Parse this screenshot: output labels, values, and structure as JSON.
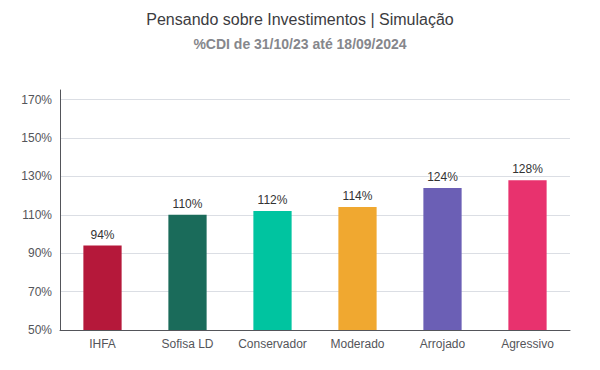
{
  "chart_data": {
    "type": "bar",
    "title": "Pensando sobre Investimentos | Simulação",
    "subtitle": "%CDI de 31/10/23 até 18/09/2024",
    "categories": [
      "IHFA",
      "Sofisa LD",
      "Conservador",
      "Moderado",
      "Arrojado",
      "Agressivo"
    ],
    "values": [
      94,
      110,
      112,
      114,
      124,
      128
    ],
    "value_labels": [
      "94%",
      "110%",
      "112%",
      "114%",
      "124%",
      "128%"
    ],
    "colors": [
      "#b5183a",
      "#1a6b5a",
      "#00c4a0",
      "#f0a830",
      "#6b5fb5",
      "#e8326e"
    ],
    "ylim": [
      50,
      175
    ],
    "yticks": [
      {
        "value": 50,
        "label": "50%"
      },
      {
        "value": 70,
        "label": "70%"
      },
      {
        "value": 90,
        "label": "90%"
      },
      {
        "value": 110,
        "label": "110%"
      },
      {
        "value": 130,
        "label": "130%"
      },
      {
        "value": 150,
        "label": "150%"
      },
      {
        "value": 170,
        "label": "170%"
      }
    ],
    "grid": true,
    "data_labels": true
  }
}
